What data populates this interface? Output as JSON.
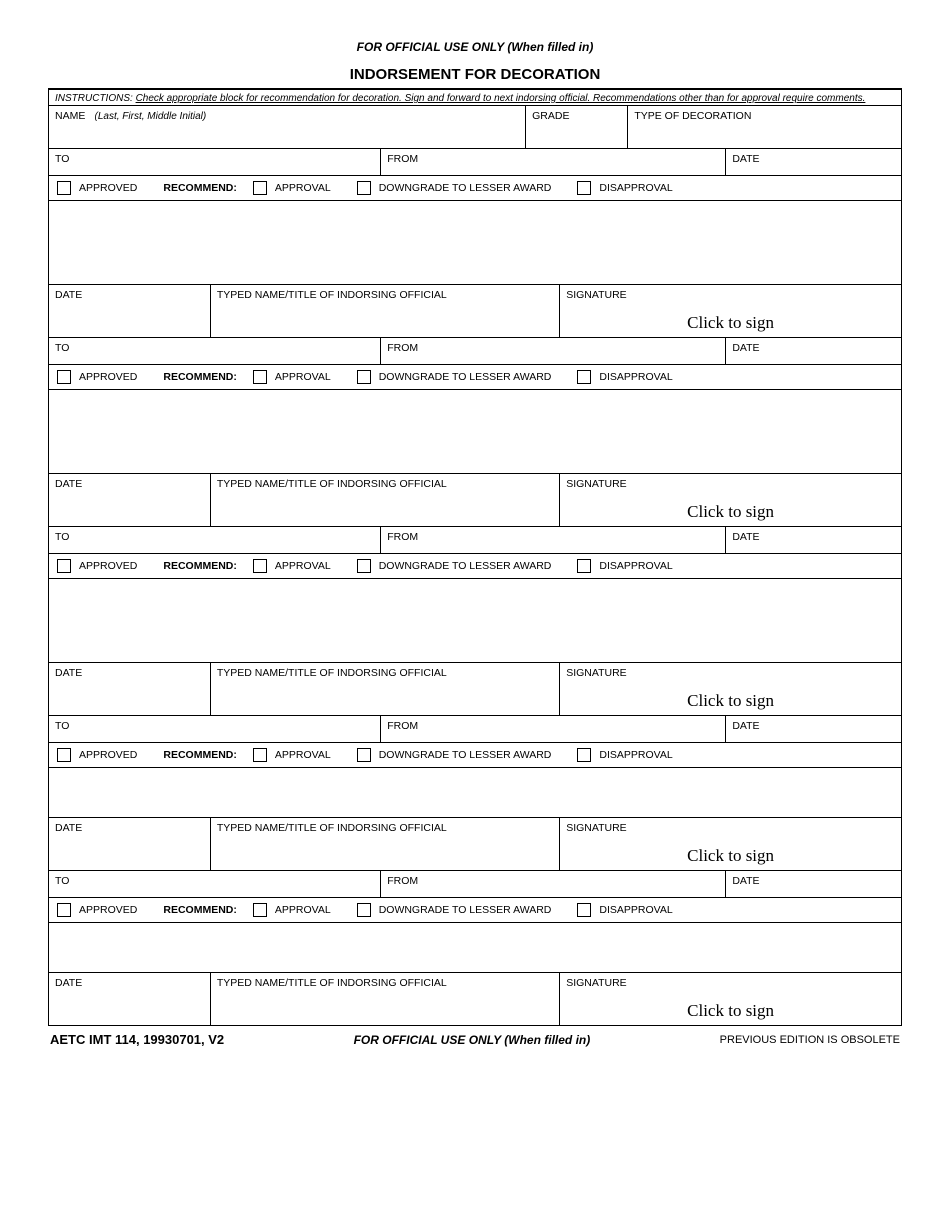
{
  "header": {
    "fouo": "FOR OFFICIAL USE ONLY (When filled in)",
    "title": "INDORSEMENT FOR DECORATION"
  },
  "instructions": {
    "prefix": "INSTRUCTIONS:  ",
    "text": "Check appropriate block for recommendation for decoration.  Sign and forward to next indorsing official.  Recommendations other than for approval require comments."
  },
  "fields": {
    "name_label": "NAME",
    "name_hint": "(Last, First, Middle Initial)",
    "grade_label": "GRADE",
    "decoration_label": "TYPE OF DECORATION",
    "to_label": "TO",
    "from_label": "FROM",
    "date_label": "DATE",
    "approved": "APPROVED",
    "recommend": "RECOMMEND:",
    "approval": "APPROVAL",
    "downgrade": "DOWNGRADE TO LESSER AWARD",
    "disapproval": "DISAPPROVAL",
    "typed_name": "TYPED NAME/TITLE OF INDORSING OFFICIAL",
    "signature": "SIGNATURE",
    "click_to_sign": "Click to sign"
  },
  "footer": {
    "form_id": "AETC IMT 114, 19930701, V2",
    "fouo": "FOR OFFICIAL USE ONLY (When filled in)",
    "obsolete": "PREVIOUS EDITION  IS OBSOLETE"
  },
  "style": {
    "text_color": "#000000",
    "background": "#ffffff",
    "border_color": "#000000"
  }
}
